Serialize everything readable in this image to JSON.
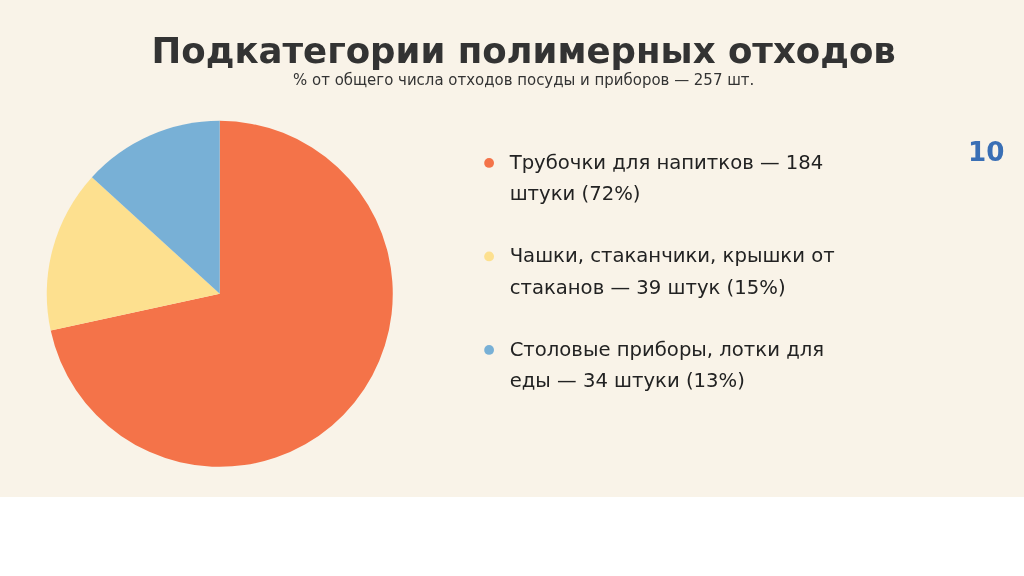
{
  "chart_data": {
    "type": "pie",
    "title": "Подкатегории полимерных отходов",
    "subtitle": "% от общего числа отходов посуды и приборов — 257 шт.",
    "categories": [
      "Трубочки для напитков — 184 штуки (72%)",
      "Чашки, стаканчики, крышки от стаканов — 39 штук (15%)",
      "Столовые приборы, лотки для еды — 34 штуки (13%)"
    ],
    "values": [
      184,
      39,
      34
    ],
    "colors": [
      "#f47349",
      "#fde08f",
      "#78b0d6"
    ],
    "legend": "right",
    "annotations": [
      "10"
    ]
  }
}
